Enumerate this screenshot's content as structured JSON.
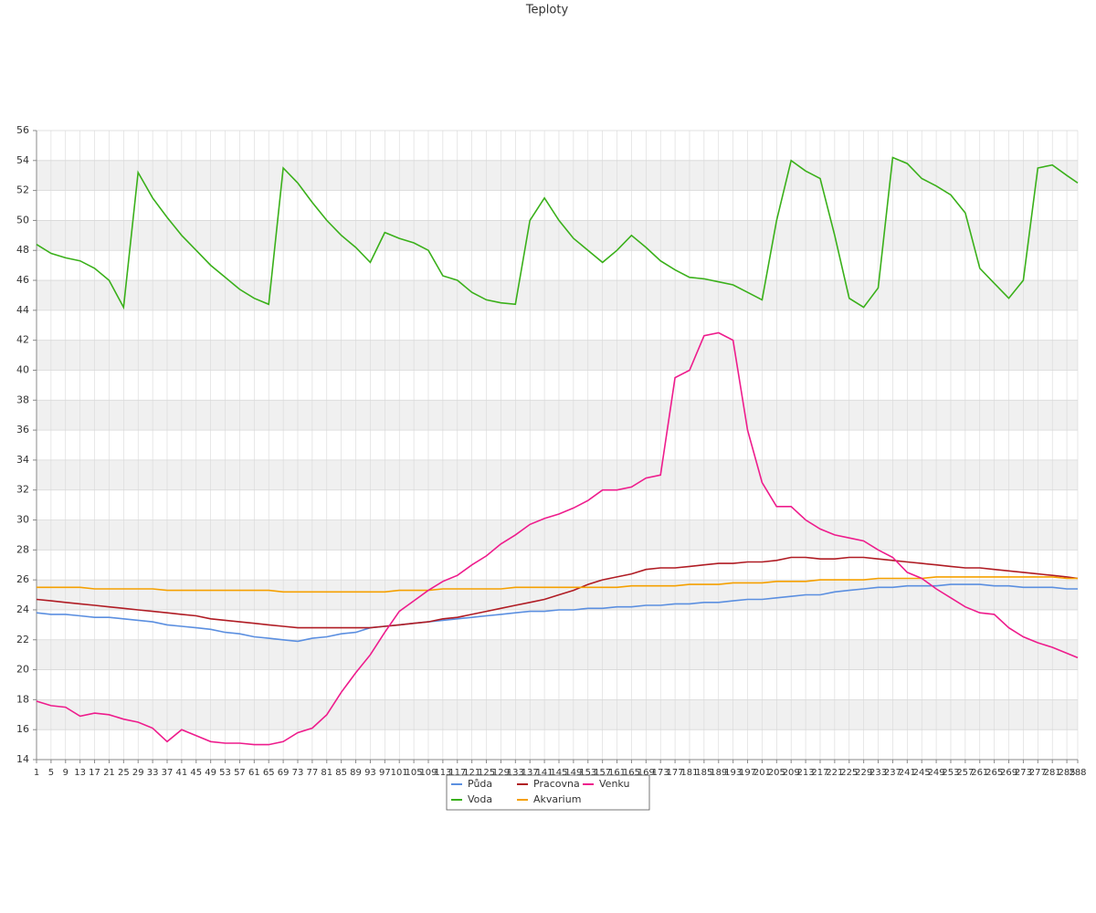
{
  "chart_data": {
    "type": "line",
    "title": "Teploty",
    "x": [
      1,
      5,
      9,
      13,
      17,
      21,
      25,
      29,
      33,
      37,
      41,
      45,
      49,
      53,
      57,
      61,
      65,
      69,
      73,
      77,
      81,
      85,
      89,
      93,
      97,
      101,
      105,
      109,
      113,
      117,
      121,
      125,
      129,
      133,
      137,
      141,
      145,
      149,
      153,
      157,
      161,
      165,
      169,
      173,
      177,
      181,
      185,
      189,
      193,
      197,
      201,
      205,
      209,
      213,
      217,
      221,
      225,
      229,
      233,
      237,
      241,
      245,
      249,
      253,
      257,
      261,
      265,
      269,
      273,
      277,
      281,
      285,
      288
    ],
    "xlim": [
      1,
      288
    ],
    "ylim": [
      14,
      56
    ],
    "yticks": [
      14,
      16,
      18,
      20,
      22,
      24,
      26,
      28,
      30,
      32,
      34,
      36,
      38,
      40,
      42,
      44,
      46,
      48,
      50,
      52,
      54,
      56
    ],
    "grid": true,
    "bands": true,
    "legend": "bottom",
    "series": [
      {
        "name": "Půda",
        "color": "#5b8fe0",
        "values": [
          23.8,
          23.7,
          23.7,
          23.6,
          23.5,
          23.5,
          23.4,
          23.3,
          23.2,
          23.0,
          22.9,
          22.8,
          22.7,
          22.5,
          22.4,
          22.2,
          22.1,
          22.0,
          21.9,
          22.1,
          22.2,
          22.4,
          22.5,
          22.8,
          22.9,
          23.0,
          23.1,
          23.2,
          23.3,
          23.4,
          23.5,
          23.6,
          23.7,
          23.8,
          23.9,
          23.9,
          24.0,
          24.0,
          24.1,
          24.1,
          24.2,
          24.2,
          24.3,
          24.3,
          24.4,
          24.4,
          24.5,
          24.5,
          24.6,
          24.7,
          24.7,
          24.8,
          24.9,
          25.0,
          25.0,
          25.2,
          25.3,
          25.4,
          25.5,
          25.5,
          25.6,
          25.6,
          25.6,
          25.7,
          25.7,
          25.7,
          25.6,
          25.6,
          25.5,
          25.5,
          25.5,
          25.4,
          25.4
        ]
      },
      {
        "name": "Voda",
        "color": "#3ab01a",
        "values": [
          48.4,
          47.8,
          47.5,
          47.3,
          46.8,
          46.0,
          44.2,
          53.2,
          51.5,
          50.2,
          49.0,
          48.0,
          47.0,
          46.2,
          45.4,
          44.8,
          44.4,
          53.5,
          52.5,
          51.2,
          50.0,
          49.0,
          48.2,
          47.2,
          49.2,
          48.8,
          48.5,
          48.0,
          46.3,
          46.0,
          45.2,
          44.7,
          44.5,
          44.4,
          50.0,
          51.5,
          50.0,
          48.8,
          48.0,
          47.2,
          48.0,
          49.0,
          48.2,
          47.3,
          46.7,
          46.2,
          46.1,
          45.9,
          45.7,
          45.2,
          44.7,
          50.0,
          54.0,
          53.3,
          52.8,
          49.0,
          44.8,
          44.2,
          45.5,
          54.2,
          53.8,
          52.8,
          52.3,
          51.7,
          50.5,
          46.8,
          45.8,
          44.8,
          46.0,
          53.5,
          53.7,
          53.0,
          52.5
        ]
      },
      {
        "name": "Pracovna",
        "color": "#b01c24",
        "values": [
          24.7,
          24.6,
          24.5,
          24.4,
          24.3,
          24.2,
          24.1,
          24.0,
          23.9,
          23.8,
          23.7,
          23.6,
          23.4,
          23.3,
          23.2,
          23.1,
          23.0,
          22.9,
          22.8,
          22.8,
          22.8,
          22.8,
          22.8,
          22.8,
          22.9,
          23.0,
          23.1,
          23.2,
          23.4,
          23.5,
          23.7,
          23.9,
          24.1,
          24.3,
          24.5,
          24.7,
          25.0,
          25.3,
          25.7,
          26.0,
          26.2,
          26.4,
          26.7,
          26.8,
          26.8,
          26.9,
          27.0,
          27.1,
          27.1,
          27.2,
          27.2,
          27.3,
          27.5,
          27.5,
          27.4,
          27.4,
          27.5,
          27.5,
          27.4,
          27.3,
          27.2,
          27.1,
          27.0,
          26.9,
          26.8,
          26.8,
          26.7,
          26.6,
          26.5,
          26.4,
          26.3,
          26.2,
          26.1
        ]
      },
      {
        "name": "Akvarium",
        "color": "#f5a000",
        "values": [
          25.5,
          25.5,
          25.5,
          25.5,
          25.4,
          25.4,
          25.4,
          25.4,
          25.4,
          25.3,
          25.3,
          25.3,
          25.3,
          25.3,
          25.3,
          25.3,
          25.3,
          25.2,
          25.2,
          25.2,
          25.2,
          25.2,
          25.2,
          25.2,
          25.2,
          25.3,
          25.3,
          25.3,
          25.4,
          25.4,
          25.4,
          25.4,
          25.4,
          25.5,
          25.5,
          25.5,
          25.5,
          25.5,
          25.5,
          25.5,
          25.5,
          25.6,
          25.6,
          25.6,
          25.6,
          25.7,
          25.7,
          25.7,
          25.8,
          25.8,
          25.8,
          25.9,
          25.9,
          25.9,
          26.0,
          26.0,
          26.0,
          26.0,
          26.1,
          26.1,
          26.1,
          26.1,
          26.2,
          26.2,
          26.2,
          26.2,
          26.2,
          26.2,
          26.2,
          26.2,
          26.2,
          26.1,
          26.1
        ]
      },
      {
        "name": "Venku",
        "color": "#ee1c8c",
        "values": [
          17.9,
          17.6,
          17.5,
          16.9,
          17.1,
          17.0,
          16.7,
          16.5,
          16.1,
          15.2,
          16.0,
          15.6,
          15.2,
          15.1,
          15.1,
          15.0,
          15.0,
          15.2,
          15.8,
          16.1,
          17.0,
          18.5,
          19.8,
          21.0,
          22.5,
          23.9,
          24.6,
          25.3,
          25.9,
          26.3,
          27.0,
          27.6,
          28.4,
          29.0,
          29.7,
          30.1,
          30.4,
          30.8,
          31.3,
          32.0,
          32.0,
          32.2,
          32.8,
          33.0,
          39.5,
          40.0,
          42.3,
          42.5,
          42.0,
          36.0,
          32.5,
          30.9,
          30.9,
          30.0,
          29.4,
          29.0,
          28.8,
          28.6,
          28.0,
          27.5,
          26.5,
          26.1,
          25.4,
          24.8,
          24.2,
          23.8,
          23.7,
          22.8,
          22.2,
          21.8,
          21.5,
          21.1,
          20.8
        ]
      }
    ]
  }
}
